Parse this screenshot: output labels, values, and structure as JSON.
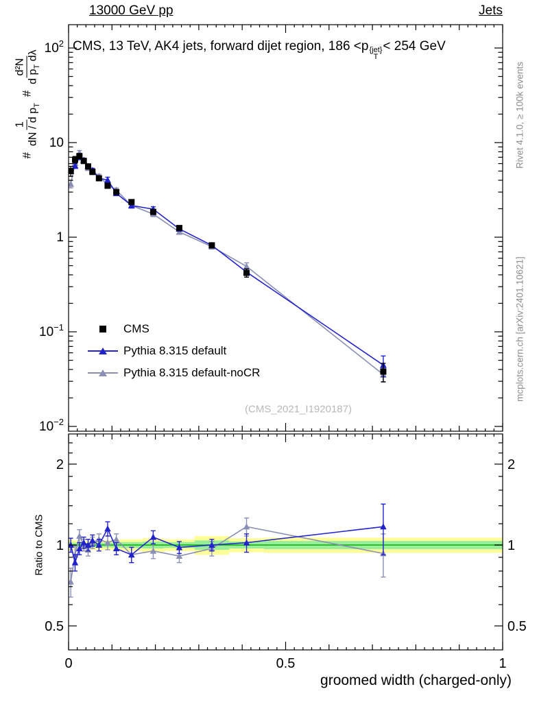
{
  "header": {
    "left": "13000 GeV pp",
    "right": "Jets"
  },
  "panel_title": {
    "prefix": "CMS, 13 TeV, AK4 jets, forward dijet region, 186 <p",
    "p_sup": "{jet}",
    "p_sub": "T",
    "suffix": "< 254 GeV"
  },
  "ylabel": {
    "h1": "#",
    "f1_num": "1",
    "f1_den": "dN / d p",
    "f1_den_sub": "T",
    "h2": "#",
    "f2_num": "d²N",
    "f2_den": "d p",
    "f2_den_sub": "T",
    "f2_den_tail": " dλ"
  },
  "ratio_ylabel": "Ratio to CMS",
  "xlabel": "groomed width (charged-only)",
  "watermark": "(CMS_2021_I1920187)",
  "side_notes": {
    "top_right": "Rivet 4.1.0, ≥ 100k events",
    "bottom_right": "mcplots.cern.ch [arXiv:2401.10621]"
  },
  "legend": [
    {
      "label": "CMS",
      "marker": "square",
      "color": "#000000"
    },
    {
      "label": "Pythia 8.315 default",
      "marker": "triangle-line",
      "color": "#2222cc"
    },
    {
      "label": "Pythia 8.315 default-noCR",
      "marker": "triangle-line",
      "color": "#8a8fb5"
    }
  ],
  "colors": {
    "pythia_default": "#2222cc",
    "pythia_nocr": "#8a8fb5",
    "band_yellow": "#ffff99",
    "band_green": "#99ee99",
    "ratio_line_green": "#2ebb2e",
    "note_gray": "#8e8e8e",
    "watermark_gray": "#b8b8b8"
  },
  "chart_data": {
    "type": "line",
    "title": "CMS, 13 TeV, AK4 jets, forward dijet region, 186 < pT{jet} < 254 GeV",
    "xlabel": "groomed width (charged-only)",
    "ylabel": "1/(dN/dpT) d²N/(dpT dλ)",
    "ratio_label": "Ratio to CMS",
    "xlim": [
      0,
      1
    ],
    "main_yscale": "log",
    "main_ylim": [
      0.009,
      178
    ],
    "ratio_yscale": "log",
    "ratio_ylim": [
      0.41,
      2.6
    ],
    "x_major_ticks": [
      0,
      0.5,
      1
    ],
    "x_tick_labels": [
      "0",
      "0.5",
      "1"
    ],
    "main_yticks": [
      {
        "v": 100,
        "base": "10",
        "exp": "2"
      },
      {
        "v": 10,
        "base": "10",
        "exp": ""
      },
      {
        "v": 1,
        "base": "1",
        "exp": ""
      },
      {
        "v": 0.1,
        "base": "10",
        "exp": "−1"
      },
      {
        "v": 0.01,
        "base": "10",
        "exp": "−2"
      }
    ],
    "ratio_yticks": [
      {
        "v": 2,
        "label": "2"
      },
      {
        "v": 1,
        "label": "1"
      },
      {
        "v": 0.5,
        "label": "0.5"
      }
    ],
    "bin_edges": [
      0,
      0.01,
      0.02,
      0.03,
      0.04,
      0.05,
      0.06,
      0.08,
      0.1,
      0.12,
      0.17,
      0.22,
      0.29,
      0.37,
      0.45,
      1.0
    ],
    "x": [
      0.005,
      0.015,
      0.025,
      0.035,
      0.045,
      0.055,
      0.07,
      0.09,
      0.11,
      0.145,
      0.195,
      0.255,
      0.33,
      0.41,
      0.725
    ],
    "series": [
      {
        "id": "cms",
        "name": "CMS",
        "role": "data",
        "color": "#000000",
        "marker": "square",
        "y": [
          5.0,
          6.6,
          7.2,
          6.4,
          5.6,
          4.9,
          4.2,
          3.5,
          3.0,
          2.35,
          1.85,
          1.25,
          0.82,
          0.42,
          0.038
        ],
        "yerr_frac": [
          0.12,
          0.08,
          0.06,
          0.06,
          0.06,
          0.06,
          0.05,
          0.05,
          0.05,
          0.05,
          0.05,
          0.05,
          0.06,
          0.1,
          0.22
        ]
      },
      {
        "id": "pythia-default",
        "name": "Pythia 8.315 default",
        "role": "mc",
        "color": "#2222cc",
        "marker": "triangle",
        "ratio": [
          1.0,
          0.86,
          0.97,
          1.02,
          1.0,
          1.04,
          1.0,
          1.15,
          0.97,
          0.92,
          1.07,
          0.98,
          1.0,
          1.02,
          1.17
        ],
        "ratio_err": [
          0.06,
          0.06,
          0.05,
          0.05,
          0.05,
          0.05,
          0.05,
          0.07,
          0.05,
          0.06,
          0.06,
          0.05,
          0.05,
          0.08,
          0.25
        ]
      },
      {
        "id": "pythia-nocr",
        "name": "Pythia 8.315 default-noCR",
        "role": "mc",
        "color": "#8a8fb5",
        "marker": "triangle",
        "ratio": [
          0.73,
          0.92,
          1.08,
          1.0,
          0.96,
          1.02,
          1.05,
          1.02,
          1.05,
          0.92,
          0.95,
          0.91,
          0.97,
          1.17,
          0.93
        ],
        "ratio_err": [
          0.09,
          0.07,
          0.06,
          0.05,
          0.05,
          0.05,
          0.05,
          0.06,
          0.05,
          0.06,
          0.06,
          0.05,
          0.06,
          0.09,
          0.17
        ]
      }
    ],
    "bands": {
      "yellow_half": [
        0.05,
        0.04,
        0.035,
        0.035,
        0.035,
        0.04,
        0.04,
        0.04,
        0.045,
        0.05,
        0.06,
        0.05,
        0.08,
        0.06,
        0.065
      ],
      "green_half": [
        0.025,
        0.02,
        0.018,
        0.018,
        0.018,
        0.02,
        0.02,
        0.02,
        0.022,
        0.025,
        0.03,
        0.025,
        0.04,
        0.03,
        0.035
      ],
      "yellow_color": "#ffff99",
      "green_color": "#99ee99",
      "line_color": "#2ebb2e"
    }
  }
}
